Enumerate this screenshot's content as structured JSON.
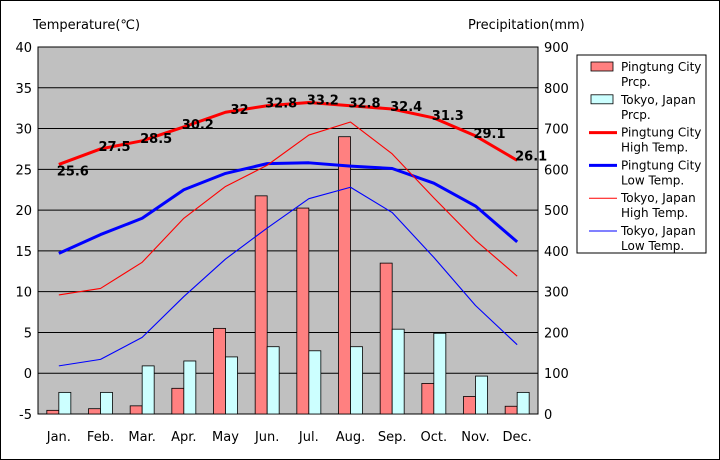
{
  "chart_data": {
    "type": "bar",
    "left_axis_label": "Temperature(℃)",
    "right_axis_label": "Precipitation(mm)",
    "categories": [
      "Jan.",
      "Feb.",
      "Mar.",
      "Apr.",
      "May",
      "Jun.",
      "Jul.",
      "Aug.",
      "Sep.",
      "Oct.",
      "Nov.",
      "Dec."
    ],
    "temp_ylim": [
      -5,
      40
    ],
    "temp_ticks": [
      -5,
      0,
      5,
      10,
      15,
      20,
      25,
      30,
      35,
      40
    ],
    "precip_ylim": [
      0,
      900
    ],
    "precip_ticks": [
      0,
      100,
      200,
      300,
      400,
      500,
      600,
      700,
      800,
      900
    ],
    "grid": true,
    "legend_position": "right",
    "bar_series": [
      {
        "name": "Pingtung City Prcp.",
        "axis": "precipitation",
        "color": "#ff8080",
        "values": [
          9,
          13,
          20,
          63,
          210,
          535,
          505,
          680,
          370,
          75,
          43,
          19
        ]
      },
      {
        "name": "Tokyo, Japan Prcp.",
        "axis": "precipitation",
        "color": "#ccffff",
        "values": [
          53,
          53,
          118,
          130,
          140,
          165,
          155,
          165,
          208,
          198,
          93,
          53
        ]
      }
    ],
    "line_series": [
      {
        "name": "Pingtung City High Temp.",
        "axis": "temperature",
        "color": "#ff0000",
        "width": "thick",
        "values": [
          25.6,
          27.5,
          28.5,
          30.2,
          32,
          32.8,
          33.2,
          32.8,
          32.4,
          31.3,
          29.1,
          26.1
        ],
        "labels": [
          "25.6",
          "27.5",
          "28.5",
          "30.2",
          "32",
          "32.8",
          "33.2",
          "32.8",
          "32.4",
          "31.3",
          "29.1",
          "26.1"
        ]
      },
      {
        "name": "Pingtung City Low Temp.",
        "axis": "temperature",
        "color": "#0000ff",
        "width": "thick",
        "values": [
          14.7,
          17,
          19,
          22.5,
          24.5,
          25.7,
          25.8,
          25.4,
          25.1,
          23.3,
          20.5,
          16.1
        ]
      },
      {
        "name": "Tokyo, Japan High Temp.",
        "axis": "temperature",
        "color": "#ff0000",
        "width": "thin",
        "values": [
          9.6,
          10.4,
          13.6,
          19,
          22.9,
          25.5,
          29.2,
          30.8,
          26.9,
          21.5,
          16.3,
          11.9
        ]
      },
      {
        "name": "Tokyo, Japan Low Temp.",
        "axis": "temperature",
        "color": "#0000ff",
        "width": "thin",
        "values": [
          0.9,
          1.7,
          4.4,
          9.4,
          14,
          17.8,
          21.4,
          22.8,
          19.7,
          14.2,
          8.3,
          3.5
        ]
      }
    ],
    "legend": [
      {
        "kind": "bar",
        "color": "#ff8080",
        "line1": "Pingtung City",
        "line2": "Prcp."
      },
      {
        "kind": "bar",
        "color": "#ccffff",
        "line1": "Tokyo, Japan",
        "line2": "Prcp."
      },
      {
        "kind": "line",
        "color": "#ff0000",
        "thick": true,
        "line1": "Pingtung City",
        "line2": "High Temp."
      },
      {
        "kind": "line",
        "color": "#0000ff",
        "thick": true,
        "line1": "Pingtung City",
        "line2": "Low Temp."
      },
      {
        "kind": "line",
        "color": "#ff0000",
        "thick": false,
        "line1": "Tokyo, Japan",
        "line2": "High Temp."
      },
      {
        "kind": "line",
        "color": "#0000ff",
        "thick": false,
        "line1": "Tokyo, Japan",
        "line2": "Low Temp."
      }
    ]
  }
}
